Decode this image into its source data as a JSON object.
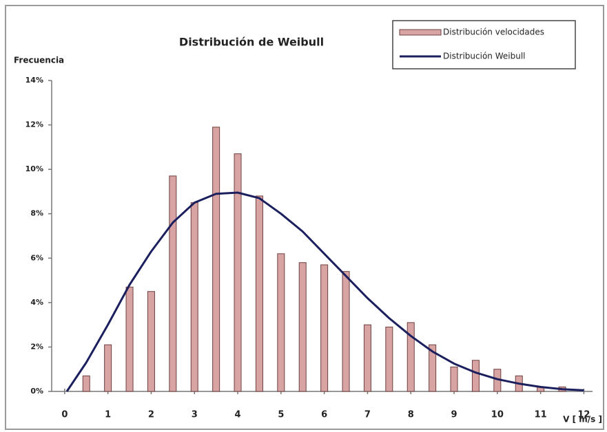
{
  "chart_data": {
    "type": "bar",
    "title": "Distribución de Weibull",
    "y_label": "Frecuencia",
    "x_label": "V [ m/s ]",
    "xlim": [
      -0.3,
      12.2
    ],
    "xticks": [
      0,
      1,
      2,
      3,
      4,
      5,
      6,
      7,
      8,
      9,
      10,
      11,
      12
    ],
    "ylim": [
      0,
      14
    ],
    "yticks": [
      {
        "value": 0,
        "label": "0%"
      },
      {
        "value": 2,
        "label": "2%"
      },
      {
        "value": 4,
        "label": "4%"
      },
      {
        "value": 6,
        "label": "6%"
      },
      {
        "value": 8,
        "label": "8%"
      },
      {
        "value": 10,
        "label": "10%"
      },
      {
        "value": 12,
        "label": "12%"
      },
      {
        "value": 14,
        "label": "14%"
      }
    ],
    "legend": "top-right",
    "series": [
      {
        "name": "Distribución velocidades",
        "type": "bar",
        "color": "#d7a3a3",
        "x": [
          0.5,
          1,
          1.5,
          2,
          2.5,
          3,
          3.5,
          4,
          4.5,
          5,
          5.5,
          6,
          6.5,
          7,
          7.5,
          8,
          8.5,
          9,
          9.5,
          10,
          10.5,
          11,
          11.5
        ],
        "values": [
          0.7,
          2.1,
          4.7,
          4.5,
          9.7,
          8.5,
          11.9,
          10.7,
          8.8,
          6.2,
          5.8,
          5.7,
          5.4,
          3.0,
          2.9,
          3.1,
          2.1,
          1.1,
          1.4,
          1.0,
          0.7,
          0.2,
          0.2
        ]
      },
      {
        "name": "Distribución Weibull",
        "type": "line",
        "color": "#1b1f5e",
        "x": [
          0.05,
          0.5,
          1,
          1.5,
          2,
          2.5,
          3,
          3.5,
          4,
          4.5,
          5,
          5.5,
          6,
          6.5,
          7,
          7.5,
          8,
          8.5,
          9,
          9.5,
          10,
          10.5,
          11,
          11.5,
          12
        ],
        "values": [
          0,
          1.3,
          3.0,
          4.8,
          6.3,
          7.6,
          8.5,
          8.9,
          8.95,
          8.7,
          8.0,
          7.2,
          6.2,
          5.2,
          4.2,
          3.3,
          2.5,
          1.8,
          1.25,
          0.85,
          0.55,
          0.35,
          0.2,
          0.1,
          0.05
        ]
      }
    ]
  }
}
